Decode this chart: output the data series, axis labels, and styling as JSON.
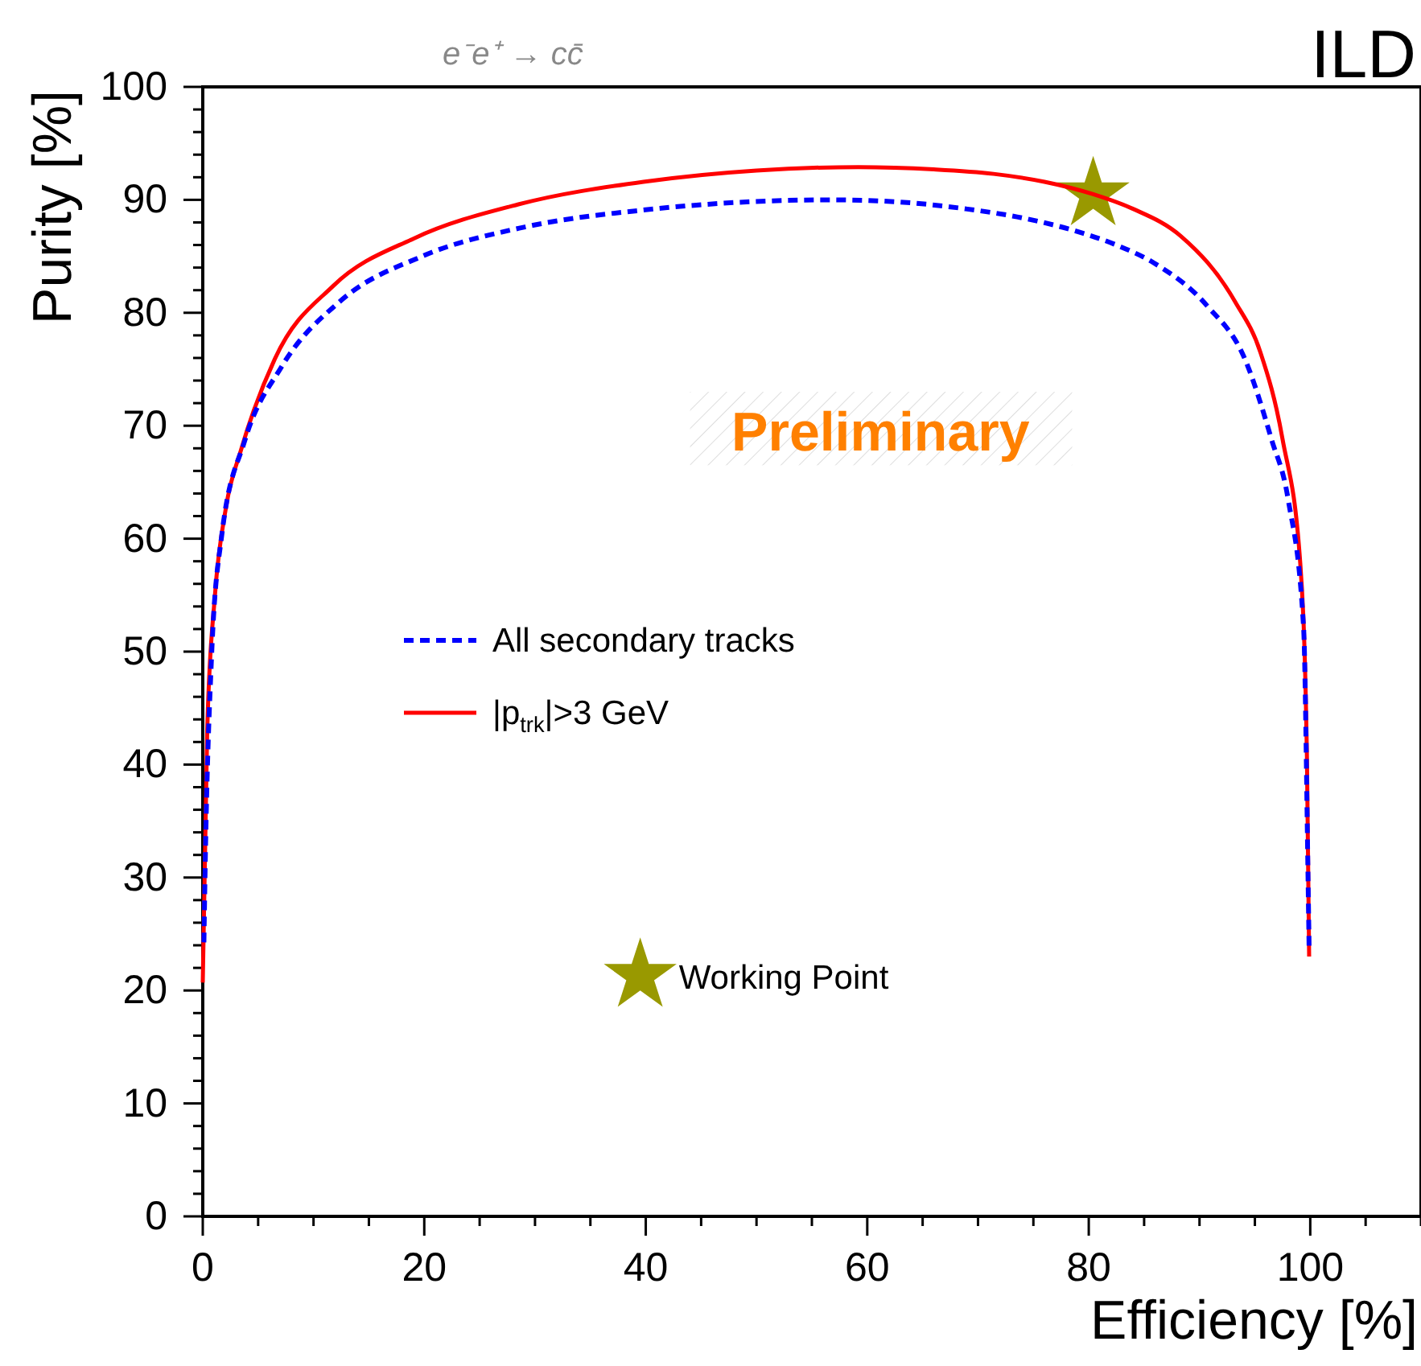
{
  "chart_data": {
    "type": "line",
    "title": "e⁻e⁺ → cc̄",
    "xlabel": "Efficiency [%]",
    "ylabel": "Purity [%]",
    "annotations": [
      "ILD",
      "Preliminary"
    ],
    "xlim": [
      0,
      110
    ],
    "ylim": [
      0,
      100
    ],
    "xticks": [
      0,
      {
        "value": 5,
        "label": null
      },
      {
        "value": 10,
        "label": null
      },
      {
        "value": 15,
        "label": null
      },
      20,
      {
        "value": 25,
        "label": null
      },
      {
        "value": 30,
        "label": null
      },
      {
        "value": 35,
        "label": null
      },
      40,
      {
        "value": 45,
        "label": null
      },
      {
        "value": 50,
        "label": null
      },
      {
        "value": 55,
        "label": null
      },
      60,
      {
        "value": 65,
        "label": null
      },
      {
        "value": 70,
        "label": null
      },
      {
        "value": 75,
        "label": null
      },
      80,
      {
        "value": 85,
        "label": null
      },
      {
        "value": 90,
        "label": null
      },
      {
        "value": 95,
        "label": null
      },
      100,
      {
        "value": 105,
        "label": null
      },
      {
        "value": 110,
        "label": null
      }
    ],
    "yticks": [
      0,
      {
        "value": 2,
        "label": null
      },
      {
        "value": 4,
        "label": null
      },
      {
        "value": 6,
        "label": null
      },
      {
        "value": 8,
        "label": null
      },
      10,
      {
        "value": 12,
        "label": null
      },
      {
        "value": 14,
        "label": null
      },
      {
        "value": 16,
        "label": null
      },
      {
        "value": 18,
        "label": null
      },
      20,
      {
        "value": 22,
        "label": null
      },
      {
        "value": 24,
        "label": null
      },
      {
        "value": 26,
        "label": null
      },
      {
        "value": 28,
        "label": null
      },
      30,
      {
        "value": 32,
        "label": null
      },
      {
        "value": 34,
        "label": null
      },
      {
        "value": 36,
        "label": null
      },
      {
        "value": 38,
        "label": null
      },
      40,
      {
        "value": 42,
        "label": null
      },
      {
        "value": 44,
        "label": null
      },
      {
        "value": 46,
        "label": null
      },
      {
        "value": 48,
        "label": null
      },
      50,
      {
        "value": 52,
        "label": null
      },
      {
        "value": 54,
        "label": null
      },
      {
        "value": 56,
        "label": null
      },
      {
        "value": 58,
        "label": null
      },
      60,
      {
        "value": 62,
        "label": null
      },
      {
        "value": 64,
        "label": null
      },
      {
        "value": 66,
        "label": null
      },
      {
        "value": 68,
        "label": null
      },
      70,
      {
        "value": 72,
        "label": null
      },
      {
        "value": 74,
        "label": null
      },
      {
        "value": 76,
        "label": null
      },
      {
        "value": 78,
        "label": null
      },
      80,
      {
        "value": 82,
        "label": null
      },
      {
        "value": 84,
        "label": null
      },
      {
        "value": 86,
        "label": null
      },
      {
        "value": 88,
        "label": null
      },
      90,
      {
        "value": 92,
        "label": null
      },
      {
        "value": 94,
        "label": null
      },
      {
        "value": 96,
        "label": null
      },
      {
        "value": 98,
        "label": null
      },
      100
    ],
    "grid": false,
    "legend": "left",
    "marker": "none",
    "series": [
      {
        "name": "All secondary tracks",
        "color": "#0000ff",
        "line_style": "dashed",
        "x": [
          0.1,
          0.2,
          0.8,
          1.7,
          3.8,
          7.1,
          12.5,
          19.8,
          29.1,
          39.8,
          47,
          56.8,
          63,
          68.9,
          74,
          78.6,
          82.5,
          85.9,
          90.7,
          94.1,
          96.5,
          98,
          99.4,
          99.8,
          99.9
        ],
        "values": [
          24,
          30,
          49.7,
          60.2,
          68.7,
          75.2,
          81.1,
          85,
          87.6,
          89.1,
          89.7,
          90,
          89.8,
          89.2,
          88.4,
          87.3,
          86,
          84.4,
          80.6,
          75.9,
          68.8,
          63.5,
          52.1,
          30,
          23.5
        ]
      },
      {
        "name": "|p$_{trk}$|>3 GeV",
        "color": "#ff0000",
        "line_style": "solid",
        "x": [
          0,
          0.4,
          1.1,
          2.1,
          3.5,
          6.5,
          11.8,
          19.1,
          28.5,
          39.8,
          50,
          59.2,
          66,
          71.4,
          76,
          80.4,
          84,
          88.3,
          93.2,
          95.5,
          97.5,
          99.1,
          99.7,
          99.9
        ],
        "values": [
          20.7,
          43,
          55,
          62.8,
          68,
          75.9,
          82.4,
          86.6,
          89.6,
          91.6,
          92.6,
          92.9,
          92.7,
          92.3,
          91.6,
          90.5,
          89.2,
          86.8,
          81,
          76.5,
          68.8,
          57.8,
          40.7,
          23
        ]
      },
      {
        "type": "scatter",
        "name": "Working Point",
        "color": "#999900",
        "marker": "star",
        "x": [
          80.4
        ],
        "values": [
          90.5
        ]
      }
    ]
  }
}
